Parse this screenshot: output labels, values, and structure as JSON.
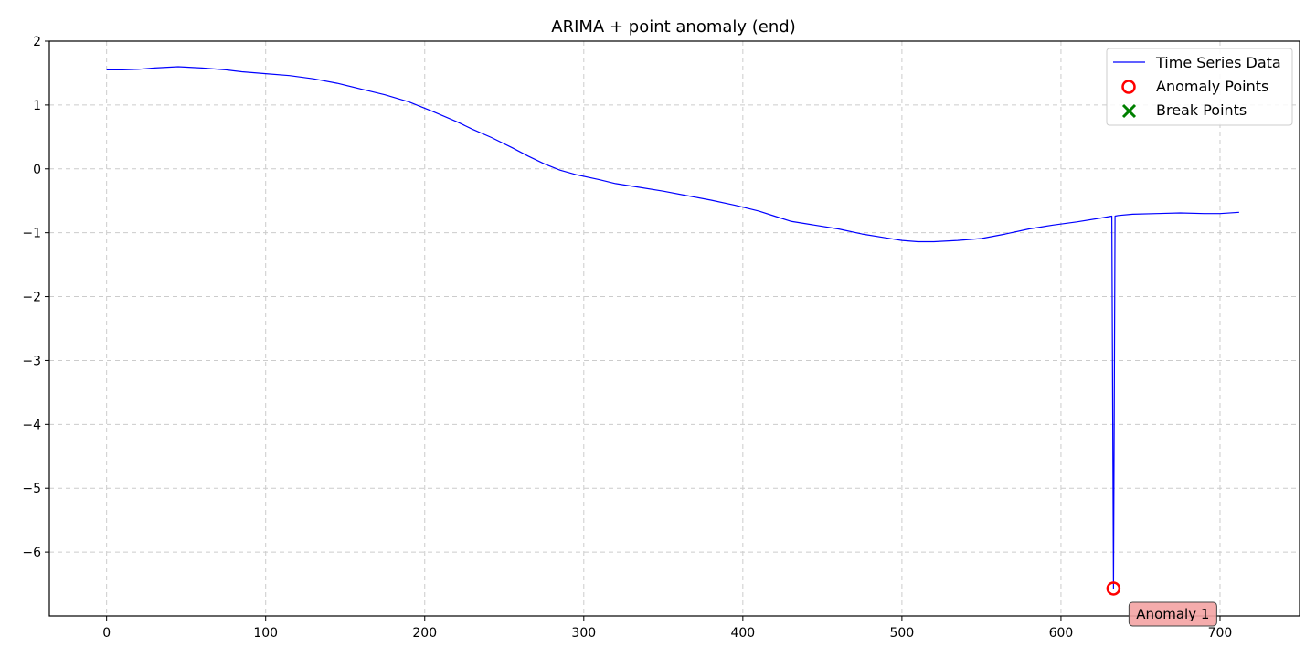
{
  "chart_data": {
    "type": "line",
    "title": "ARIMA + point anomaly (end)",
    "xlabel": "",
    "ylabel": "",
    "xlim": [
      -36,
      750
    ],
    "ylim": [
      -7,
      2
    ],
    "xticks": [
      0,
      100,
      200,
      300,
      400,
      500,
      600,
      700
    ],
    "yticks": [
      2,
      1,
      0,
      -1,
      -2,
      -3,
      -4,
      -5,
      -6
    ],
    "grid": true,
    "legend_position": "top-right",
    "series": [
      {
        "name": "Time Series Data",
        "color": "#0000ff",
        "x": [
          0,
          10,
          20,
          30,
          45,
          60,
          75,
          85,
          100,
          115,
          130,
          145,
          160,
          175,
          190,
          205,
          220,
          230,
          242,
          255,
          265,
          275,
          285,
          295,
          310,
          320,
          335,
          350,
          365,
          380,
          395,
          410,
          420,
          430,
          445,
          460,
          475,
          490,
          500,
          510,
          520,
          535,
          550,
          565,
          580,
          595,
          610,
          625,
          632,
          633,
          634,
          636,
          645,
          660,
          675,
          690,
          700,
          712
        ],
        "y": [
          1.55,
          1.55,
          1.56,
          1.58,
          1.6,
          1.58,
          1.55,
          1.52,
          1.49,
          1.46,
          1.41,
          1.34,
          1.25,
          1.16,
          1.05,
          0.9,
          0.74,
          0.62,
          0.49,
          0.33,
          0.2,
          0.08,
          -0.02,
          -0.09,
          -0.17,
          -0.23,
          -0.29,
          -0.35,
          -0.42,
          -0.49,
          -0.57,
          -0.66,
          -0.74,
          -0.82,
          -0.88,
          -0.94,
          -1.02,
          -1.08,
          -1.12,
          -1.14,
          -1.14,
          -1.12,
          -1.09,
          -1.02,
          -0.94,
          -0.88,
          -0.83,
          -0.77,
          -0.74,
          -6.57,
          -0.74,
          -0.73,
          -0.71,
          -0.7,
          -0.69,
          -0.7,
          -0.7,
          -0.68
        ]
      }
    ],
    "anomaly_points": {
      "name": "Anomaly Points",
      "color": "#ff0000",
      "x": [
        633
      ],
      "y": [
        -6.57
      ]
    },
    "break_points": {
      "name": "Break Points",
      "color": "#008000",
      "x": [],
      "y": []
    },
    "annotations": [
      {
        "text": "Anomaly 1",
        "x": 633,
        "y": -6.57,
        "box_color": "#f4a3a3"
      }
    ]
  }
}
